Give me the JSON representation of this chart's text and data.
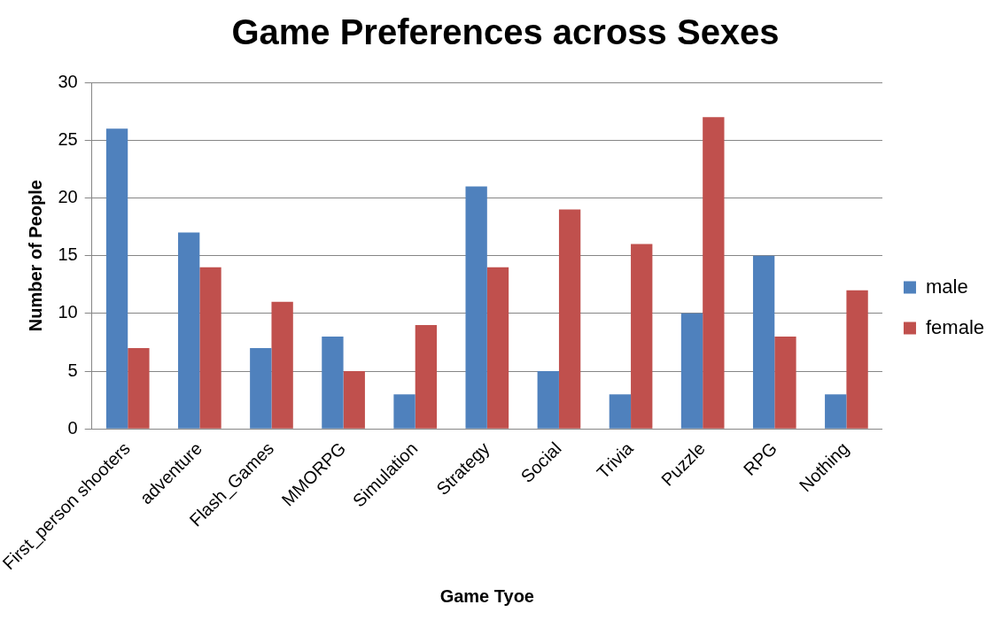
{
  "chart_data": {
    "type": "bar",
    "title": "Game Preferences across Sexes",
    "xlabel": "Game Tyoe",
    "ylabel": "Number of People",
    "categories": [
      "First_person shooters",
      "adventure",
      "Flash_Games",
      "MMORPG",
      "Simulation",
      "Strategy",
      "Social",
      "Trivia",
      "Puzzle",
      "RPG",
      "Nothing"
    ],
    "series": [
      {
        "name": "male",
        "color": "#4f81bd",
        "values": [
          26,
          17,
          7,
          8,
          3,
          21,
          5,
          3,
          10,
          15,
          3
        ]
      },
      {
        "name": "female",
        "color": "#c0504d",
        "values": [
          7,
          14,
          11,
          5,
          9,
          14,
          19,
          16,
          27,
          8,
          12
        ]
      }
    ],
    "ylim": [
      0,
      30
    ],
    "yticks": [
      0,
      5,
      10,
      15,
      20,
      25,
      30
    ],
    "grid": "y",
    "legend": "right"
  }
}
